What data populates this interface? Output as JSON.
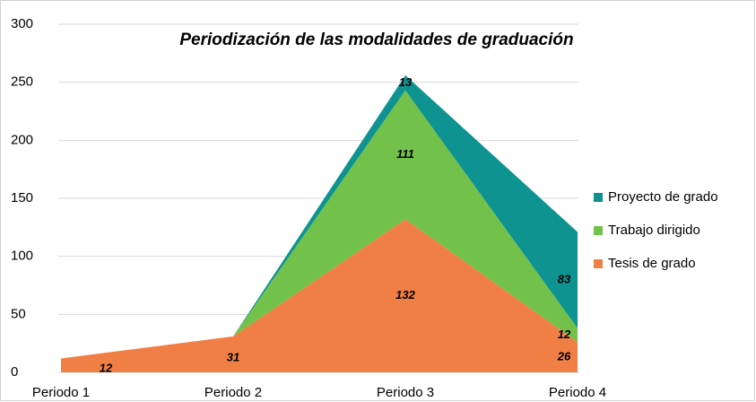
{
  "chart_data": {
    "type": "stacked_area",
    "title": "Periodización de las modalidades de graduación",
    "categories": [
      "Periodo 1",
      "Periodo 2",
      "Periodo 3",
      "Periodo 4"
    ],
    "series": [
      {
        "name": "Tesis de grado",
        "color": "#f07f46",
        "values": [
          12,
          31,
          132,
          26
        ]
      },
      {
        "name": "Trabajo dirigido",
        "color": "#72c14a",
        "values": [
          0,
          0,
          111,
          12
        ]
      },
      {
        "name": "Proyecto de grado",
        "color": "#0e9390",
        "values": [
          0,
          0,
          13,
          83
        ]
      }
    ],
    "ylim": [
      0,
      300
    ],
    "yticks": [
      0,
      50,
      100,
      150,
      200,
      250,
      300
    ],
    "grid": true,
    "legend": "right"
  }
}
